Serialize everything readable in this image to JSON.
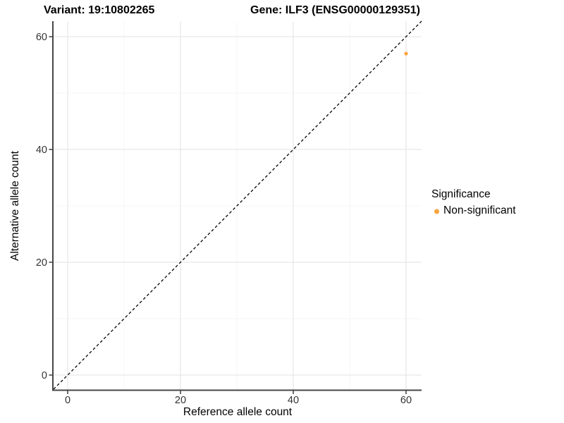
{
  "colors": {
    "background": "#FFFFFF",
    "grid_major": "#E6E6E6",
    "grid_minor": "#F4F4F4",
    "axis_line": "#474747",
    "tick_label": "#333333",
    "abline": "#000000",
    "point": "#F9A43C"
  },
  "chart_data": {
    "type": "scatter",
    "title_left": "Variant: 19:10802265",
    "title_right": "Gene: ILF3 (ENSG00000129351)",
    "xlabel": "Reference allele count",
    "ylabel": "Alternative allele count",
    "legend_title": "Significance",
    "legend_position": "right",
    "xlim": [
      -2.5,
      62.75
    ],
    "ylim": [
      -2.6,
      62.75
    ],
    "x_ticks": [
      0,
      20,
      40,
      60
    ],
    "y_ticks": [
      0,
      20,
      40,
      60
    ],
    "x_minor_ticks": [
      10,
      30,
      50
    ],
    "y_minor_ticks": [
      10,
      30,
      50
    ],
    "grid": true,
    "series": [
      {
        "name": "Non-significant",
        "color": "#F9A43C",
        "points": [
          {
            "x": 60,
            "y": 57
          }
        ]
      }
    ],
    "reference_line": {
      "type": "abline",
      "slope": 1,
      "intercept": 0,
      "style": "dashed",
      "color": "#000000"
    }
  }
}
